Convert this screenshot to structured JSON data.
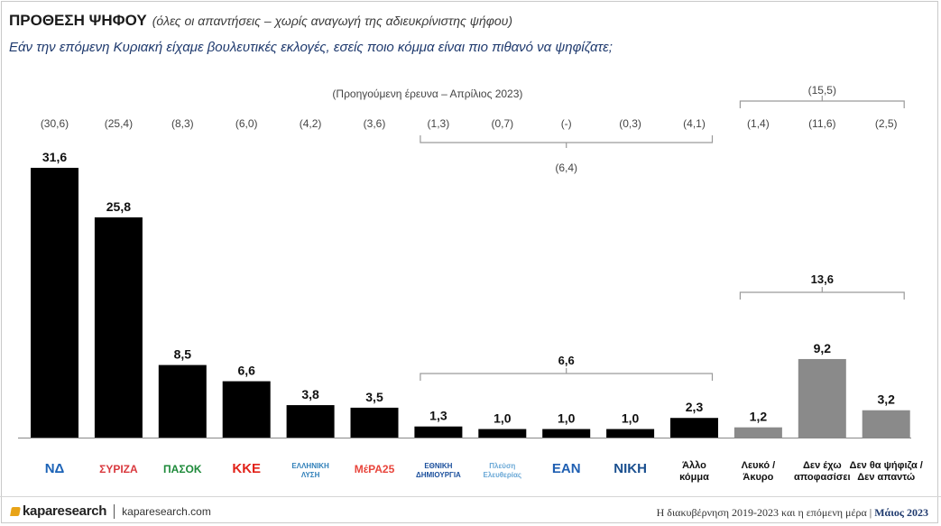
{
  "header": {
    "title": "ΠΡΟΘΕΣΗ ΨΗΦΟΥ",
    "subtitle": "(όλες οι απαντήσεις – χωρίς αναγωγή της αδιευκρίνιστης ψήφου)",
    "question": "Εάν την επόμενη Κυριακή είχαμε βουλευτικές εκλογές, εσείς ποιο κόμμα είναι πιο πιθανό να ψηφίζατε;"
  },
  "chart_data": {
    "type": "bar",
    "title": "ΠΡΟΘΕΣΗ ΨΗΦΟΥ",
    "xlabel": "",
    "ylabel": "",
    "categories": [
      "ΝΔ",
      "ΣΥΡΙΖΑ",
      "ΠΑΣΟΚ",
      "ΚΚΕ",
      "ΕΛΛΗΝΙΚΗ ΛΥΣΗ",
      "ΜέΡΑ25",
      "ΕΘΝΙΚΗ ΔΗΜΙΟΥΡΓΙΑ",
      "Πλεύση Ελευθερίας",
      "ΕΑΝ",
      "ΝΙΚΗ",
      "Άλλο κόμμα",
      "Λευκό / Άκυρο",
      "Δεν έχω αποφασίσει",
      "Δεν θα ψήφιζα / Δεν απαντώ"
    ],
    "category_labels": [
      [
        "ΝΔ"
      ],
      [
        "ΣΥΡΙΖΑ"
      ],
      [
        "ΠΑΣΟΚ"
      ],
      [
        "ΚΚΕ"
      ],
      [
        "ΕΛΛΗΝΙΚΗ",
        "ΛΥΣΗ"
      ],
      [
        "ΜέΡΑ25"
      ],
      [
        "ΕΘΝΙΚΗ",
        "ΔΗΜΙΟΥΡΓΙΑ"
      ],
      [
        "Πλεύση",
        "Ελευθερίας"
      ],
      [
        "ΕΑΝ"
      ],
      [
        "ΝΙΚΗ"
      ],
      [
        "Άλλο",
        "κόμμα"
      ],
      [
        "Λευκό /",
        "Άκυρο"
      ],
      [
        "Δεν έχω",
        "αποφασίσει"
      ],
      [
        "Δεν θα ψήφιζα /",
        "Δεν απαντώ"
      ]
    ],
    "values": [
      31.6,
      25.8,
      8.5,
      6.6,
      3.8,
      3.5,
      1.3,
      1.0,
      1.0,
      1.0,
      2.3,
      1.2,
      9.2,
      3.2
    ],
    "value_labels": [
      "31,6",
      "25,8",
      "8,5",
      "6,6",
      "3,8",
      "3,5",
      "1,3",
      "1,0",
      "1,0",
      "1,0",
      "2,3",
      "1,2",
      "9,2",
      "3,2"
    ],
    "previous_label": "(Προηγούμενη έρευνα – Απρίλιος 2023)",
    "previous_values": [
      "(30,6)",
      "(25,4)",
      "(8,3)",
      "(6,0)",
      "(4,2)",
      "(3,6)",
      "(1,3)",
      "(0,7)",
      "(-)",
      "(0,3)",
      "(4,1)",
      "(1,4)",
      "(11,6)",
      "(2,5)"
    ],
    "groups": [
      {
        "from": 6,
        "to": 10,
        "total_label": "6,6",
        "previous_total_label": "(6,4)"
      },
      {
        "from": 11,
        "to": 13,
        "total_label": "13,6",
        "previous_total_label": "(15,5)"
      }
    ],
    "ylim": [
      0,
      33
    ],
    "grid": false,
    "legend": "none",
    "colors": {
      "party": "#000000",
      "other": "#8a8a8a",
      "bracket": "#9a9a9a"
    },
    "logo_colors": [
      "#1c63b7",
      "#d9393e",
      "#1e8a3a",
      "#e2231a",
      "#2f7fb9",
      "#e8453c",
      "#1b4f9c",
      "#6aa8d6",
      "#1f5fb2",
      "#1a4f8f",
      "",
      "",
      "",
      ""
    ]
  },
  "footer": {
    "brand_name": "kaparesearch",
    "brand_url": "kaparesearch.com",
    "caption": "Η διακυβέρνηση 2019-2023 και η επόμενη μέρα |",
    "date": "Μάιος 2023"
  }
}
